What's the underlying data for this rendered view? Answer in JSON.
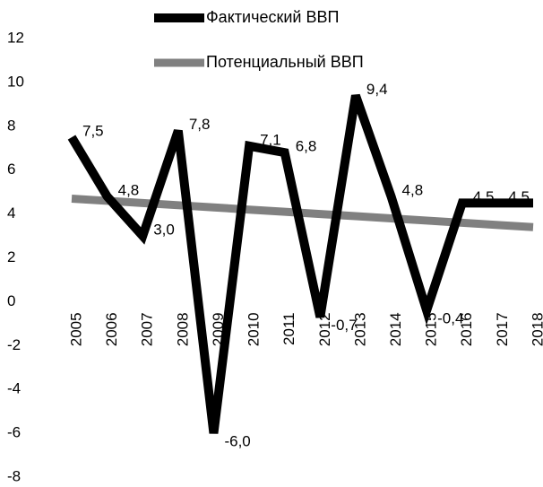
{
  "chart_data": {
    "type": "line",
    "categories": [
      "2005",
      "2006",
      "2007",
      "2008",
      "2009",
      "2010",
      "2011",
      "2012",
      "2013",
      "2014",
      "2015",
      "2016",
      "2017",
      "2018"
    ],
    "series": [
      {
        "name": "Фактический ВВП",
        "color": "#000000",
        "values": [
          7.5,
          4.8,
          3.0,
          7.8,
          -6.0,
          7.1,
          6.8,
          -0.7,
          9.4,
          4.8,
          -0.4,
          4.5,
          4.5,
          4.5
        ],
        "value_labels": [
          "7,5",
          "4,8",
          "3,0",
          "7,8",
          "-6,0",
          "7,1",
          "6,8",
          "-0,7",
          "9,4",
          "4,8",
          "-0,4",
          "4,5",
          "4,5",
          "4,5"
        ]
      },
      {
        "name": "Потенциальный ВВП",
        "color": "#808080",
        "values": [
          4.7,
          4.6,
          4.5,
          4.4,
          4.3,
          4.2,
          4.1,
          4.0,
          3.9,
          3.8,
          3.7,
          3.6,
          3.5,
          3.4
        ]
      }
    ],
    "ylim": [
      -8,
      12
    ],
    "yticks": [
      -8,
      -6,
      -4,
      -2,
      0,
      2,
      4,
      6,
      8,
      10,
      12
    ],
    "legend": "top"
  }
}
